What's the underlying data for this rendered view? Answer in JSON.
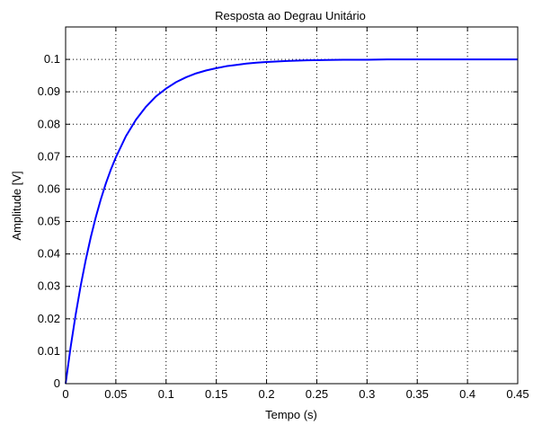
{
  "chart_data": {
    "type": "line",
    "title": "Resposta ao Degrau Unitário",
    "xlabel": "Tempo (s)",
    "ylabel": "Amplitude [V]",
    "xlim": [
      0,
      0.45
    ],
    "ylim": [
      0,
      0.11
    ],
    "xticks": [
      0,
      0.05,
      0.1,
      0.15,
      0.2,
      0.25,
      0.3,
      0.35,
      0.4,
      0.45
    ],
    "xtick_labels": [
      "0",
      "0.05",
      "0.1",
      "0.15",
      "0.2",
      "0.25",
      "0.3",
      "0.35",
      "0.4",
      "0.45"
    ],
    "yticks": [
      0,
      0.01,
      0.02,
      0.03,
      0.04,
      0.05,
      0.06,
      0.07,
      0.08,
      0.09,
      0.1
    ],
    "ytick_labels": [
      "0",
      "0.01",
      "0.02",
      "0.03",
      "0.04",
      "0.05",
      "0.06",
      "0.07",
      "0.08",
      "0.09",
      "0.1"
    ],
    "grid": true,
    "series": [
      {
        "color": "#0000ff",
        "x": [
          0,
          0.005,
          0.01,
          0.015,
          0.02,
          0.025,
          0.03,
          0.035,
          0.04,
          0.045,
          0.05,
          0.06,
          0.07,
          0.08,
          0.09,
          0.1,
          0.11,
          0.12,
          0.13,
          0.14,
          0.15,
          0.16,
          0.17,
          0.18,
          0.19,
          0.2,
          0.22,
          0.24,
          0.26,
          0.28,
          0.3,
          0.32,
          0.34,
          0.36,
          0.38,
          0.4,
          0.42,
          0.44,
          0.45
        ],
        "y": [
          0,
          0.0113,
          0.0213,
          0.0302,
          0.0381,
          0.0451,
          0.0513,
          0.0568,
          0.0617,
          0.066,
          0.0698,
          0.0763,
          0.0814,
          0.0854,
          0.0886,
          0.091,
          0.093,
          0.0945,
          0.0957,
          0.0966,
          0.0973,
          0.0979,
          0.0983,
          0.0987,
          0.099,
          0.0992,
          0.0995,
          0.0997,
          0.0998,
          0.0999,
          0.0999,
          0.1,
          0.1,
          0.1,
          0.1,
          0.1,
          0.1,
          0.1,
          0.1
        ]
      }
    ]
  }
}
